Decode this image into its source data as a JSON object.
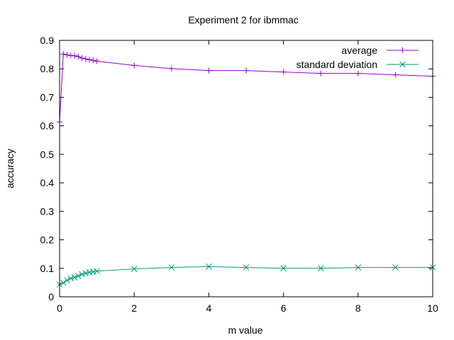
{
  "chart_data": {
    "type": "line",
    "title": "Experiment 2 for ibmmac",
    "xlabel": "m value",
    "ylabel": "accuracy",
    "xlim": [
      0,
      10
    ],
    "ylim": [
      0,
      0.9
    ],
    "xticks": [
      0,
      2,
      4,
      6,
      8,
      10
    ],
    "yticks": [
      0,
      0.1,
      0.2,
      0.3,
      0.4,
      0.5,
      0.6,
      0.7,
      0.8,
      0.9
    ],
    "x_tick_labels": [
      "0",
      "2",
      "4",
      "6",
      "8",
      "10"
    ],
    "y_tick_labels": [
      "0",
      "0.1",
      "0.2",
      "0.3",
      "0.4",
      "0.5",
      "0.6",
      "0.7",
      "0.8",
      "0.9"
    ],
    "grid": false,
    "legend_position": "top-right",
    "series": [
      {
        "name": "average",
        "color": "#9400d3",
        "marker": "plus",
        "x": [
          0,
          0.1,
          0.2,
          0.3,
          0.4,
          0.5,
          0.6,
          0.7,
          0.8,
          0.9,
          1,
          2,
          3,
          4,
          5,
          6,
          7,
          8,
          9,
          10
        ],
        "y": [
          0.614,
          0.852,
          0.849,
          0.847,
          0.846,
          0.843,
          0.838,
          0.835,
          0.832,
          0.83,
          0.827,
          0.812,
          0.801,
          0.794,
          0.794,
          0.789,
          0.784,
          0.784,
          0.779,
          0.774
        ]
      },
      {
        "name": "standard deviation",
        "color": "#009e73",
        "marker": "cross",
        "x": [
          0,
          0.1,
          0.2,
          0.3,
          0.4,
          0.5,
          0.6,
          0.7,
          0.8,
          0.9,
          1,
          2,
          3,
          4,
          5,
          6,
          7,
          8,
          9,
          10
        ],
        "y": [
          0.043,
          0.049,
          0.058,
          0.065,
          0.068,
          0.073,
          0.079,
          0.083,
          0.086,
          0.088,
          0.09,
          0.098,
          0.103,
          0.106,
          0.103,
          0.1,
          0.1,
          0.103,
          0.103,
          0.103
        ]
      }
    ]
  }
}
